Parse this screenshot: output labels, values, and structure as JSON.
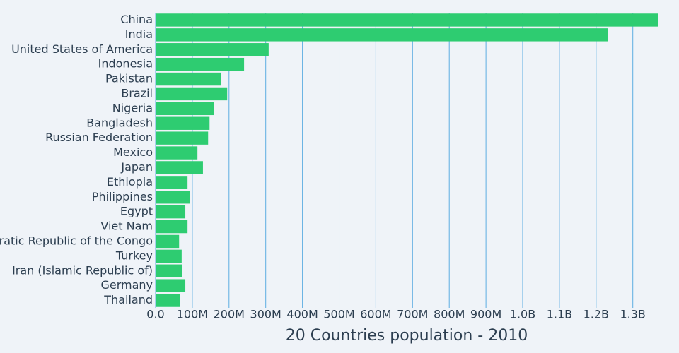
{
  "chart_data": {
    "type": "bar",
    "orientation": "horizontal",
    "title": "20 Countries population - 2010",
    "categories": [
      "China",
      "India",
      "United States of America",
      "Indonesia",
      "Pakistan",
      "Brazil",
      "Nigeria",
      "Bangladesh",
      "Russian Federation",
      "Mexico",
      "Japan",
      "Ethiopia",
      "Philippines",
      "Egypt",
      "Viet Nam",
      "Democratic Republic of the Congo",
      "Turkey",
      "Iran (Islamic Republic of)",
      "Germany",
      "Thailand"
    ],
    "values": [
      1368000000,
      1233000000,
      308000000,
      241000000,
      179000000,
      195000000,
      158000000,
      147000000,
      143000000,
      114000000,
      129000000,
      87000000,
      93000000,
      81000000,
      87000000,
      64000000,
      71000000,
      73000000,
      81000000,
      67000000
    ],
    "color": "#2ecc71",
    "xlim": [
      0,
      1368000000
    ],
    "xticks": [
      {
        "value": 0,
        "label": "0.0"
      },
      {
        "value": 100000000,
        "label": "100M"
      },
      {
        "value": 200000000,
        "label": "200M"
      },
      {
        "value": 300000000,
        "label": "300M"
      },
      {
        "value": 400000000,
        "label": "400M"
      },
      {
        "value": 500000000,
        "label": "500M"
      },
      {
        "value": 600000000,
        "label": "600M"
      },
      {
        "value": 700000000,
        "label": "700M"
      },
      {
        "value": 800000000,
        "label": "800M"
      },
      {
        "value": 900000000,
        "label": "900M"
      },
      {
        "value": 1000000000,
        "label": "1.0B"
      },
      {
        "value": 1100000000,
        "label": "1.1B"
      },
      {
        "value": 1200000000,
        "label": "1.2B"
      },
      {
        "value": 1300000000,
        "label": "1.3B"
      }
    ],
    "grid": true,
    "grid_color": "#5dade2"
  }
}
